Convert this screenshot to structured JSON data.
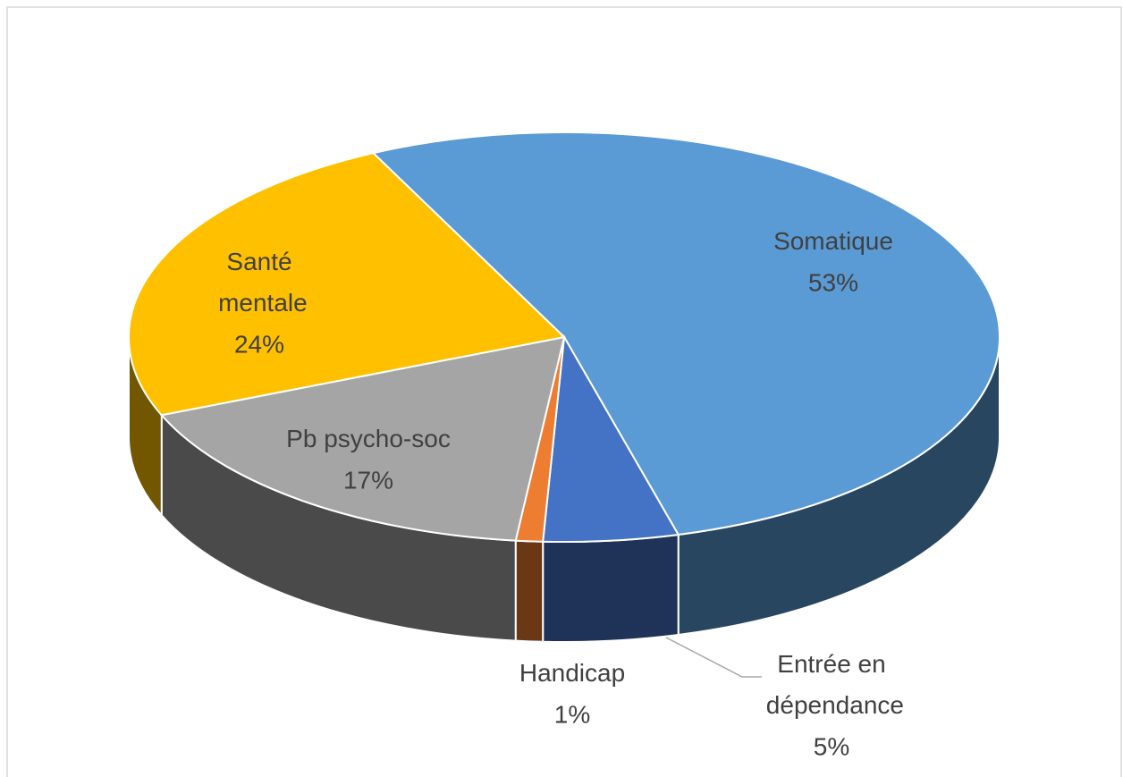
{
  "chart_data": {
    "type": "pie",
    "categories": [
      "Somatique",
      "Entrée en dépendance",
      "Handicap",
      "Pb psycho-soc",
      "Santé mentale"
    ],
    "values": [
      53,
      5,
      1,
      17,
      24
    ],
    "value_labels": [
      "53%",
      "5%",
      "1%",
      "17%",
      "24%"
    ],
    "colors": [
      "#5b9bd5",
      "#4472c4",
      "#ed7d31",
      "#a5a5a5",
      "#ffc000"
    ]
  }
}
